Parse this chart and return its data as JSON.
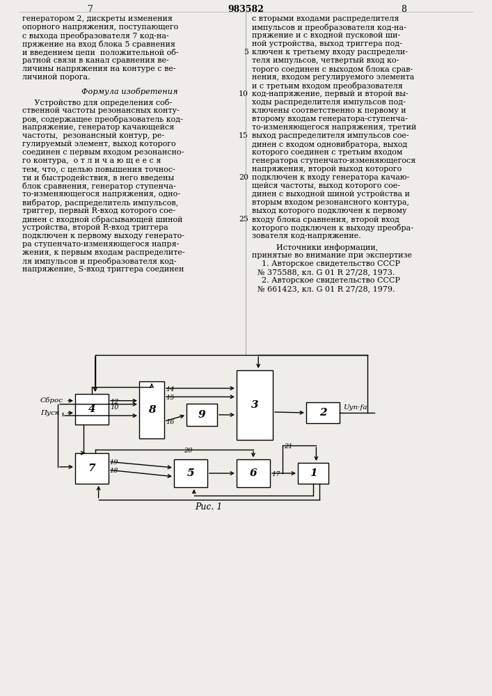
{
  "page_number_left": "7",
  "page_number_center": "983582",
  "page_number_right": "8",
  "text_left_col": [
    "генератором 2, дискреты изменения",
    "опорного напряжения, поступающего",
    "с выхода преобразователя 7 код-на-",
    "пряжение на вход блока 5 сравнения",
    "и введением цепи  положительной об-",
    "ратной связи в канал сравнения ве-",
    "личины напряжения на контуре с ве-",
    "личиной порога."
  ],
  "formula_title": "Формула изобретения",
  "text_left_col2": [
    "     Устройство для определения соб-",
    "ственной частоты резонансных конту-",
    "ров, содержащее преобразователь код-",
    "напряжение, генератор качающейся",
    "частоты,  резонансный контур, ре-",
    "гулируемый элемент, выход которого",
    "соединен с первым входом резонансно-",
    "го контура,  о т л и ч а ю щ е е с я",
    "тем, что, с целью повышения точнос-",
    "ти и быстродействия, в него введены",
    "блок сравнения, генератор ступенча-",
    "то-изменяющегося напряжения, одно-",
    "вибратор, распределитель импульсов,",
    "триггер, первый R-вход которого сое-",
    "динен с входной сбрасывающей шиной",
    "устройства, второй R-вход триггера",
    "подключен к первому выходу генерато-",
    "ра ступенчато-изменяющегося напря-",
    "жения, к первым входам распределите-",
    "ля импульсов и преобразователя код-",
    "напряжение, S-вход триггера соединен"
  ],
  "text_right_col": [
    "с вторыми входами распределителя",
    "импульсов и преобразователя код-на-",
    "пряжение и с входной пусковой ши-",
    "ной устройства, выход триггера под-",
    "ключен к третьему входу распредели-",
    "теля импульсов, четвертый вход ко-",
    "торого соединен с выходом блока срав-",
    "нения, входом регулируемого элемента",
    "и с третьим входом преобразователя",
    "код-напряжение, первый и второй вы-",
    "ходы распределителя импульсов под-",
    "ключены соответственно к первому и",
    "второму входам генератора-ступенча-",
    "то-изменяющегося напряжения, третий",
    "выход распределителя импульсов сое-",
    "динен с входом одновибратора, выход",
    "которого соединен с третьим входом",
    "генератора ступенчато-изменяющегося",
    "напряжения, второй выход которого",
    "подключен к входу генератора качаю-",
    "щейся частоты, выход которого сое-",
    "динен с выходной шиной устройства и",
    "вторым входом резонансного контура,",
    "выход которого подключен к первому",
    "входу блока сравнения, второй вход",
    "которого подключен к выходу преобра-",
    "зователя код-напряжение."
  ],
  "sources_title": "          Источники информации,",
  "sources_subtitle": "принятые во внимание при экспертизе",
  "source1": "    1. Авторское свидетельство СССР",
  "source1b": "№ 375588, кл. G 01 R 27/28, 1973.",
  "source2": "    2. Авторское свидетельство СССР",
  "source2b": "№ 661423, кл. G 01 R 27/28, 1979.",
  "fig_label": "Рис. 1",
  "background_color": "#f0ede8"
}
